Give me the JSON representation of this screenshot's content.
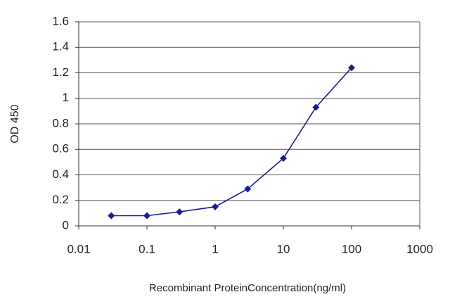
{
  "chart_data": {
    "type": "line",
    "x_label": "Recombinant ProteinConcentration(ng/ml)",
    "y_label": "OD 450",
    "x": [
      0.03,
      0.1,
      0.3,
      1,
      3,
      10,
      30,
      100
    ],
    "series": [
      {
        "name": "OD 450",
        "color": "#1c1c96",
        "values": [
          0.08,
          0.08,
          0.11,
          0.15,
          0.29,
          0.53,
          0.93,
          1.24
        ]
      }
    ],
    "xlim": [
      0.01,
      1000
    ],
    "xticks": [
      0.01,
      0.1,
      1,
      10,
      100,
      1000
    ],
    "xscale": "log",
    "ylim": [
      0,
      1.6
    ],
    "yticks": [
      0,
      0.2,
      0.4,
      0.6,
      0.8,
      1,
      1.2,
      1.4,
      1.6
    ],
    "grid": true
  }
}
